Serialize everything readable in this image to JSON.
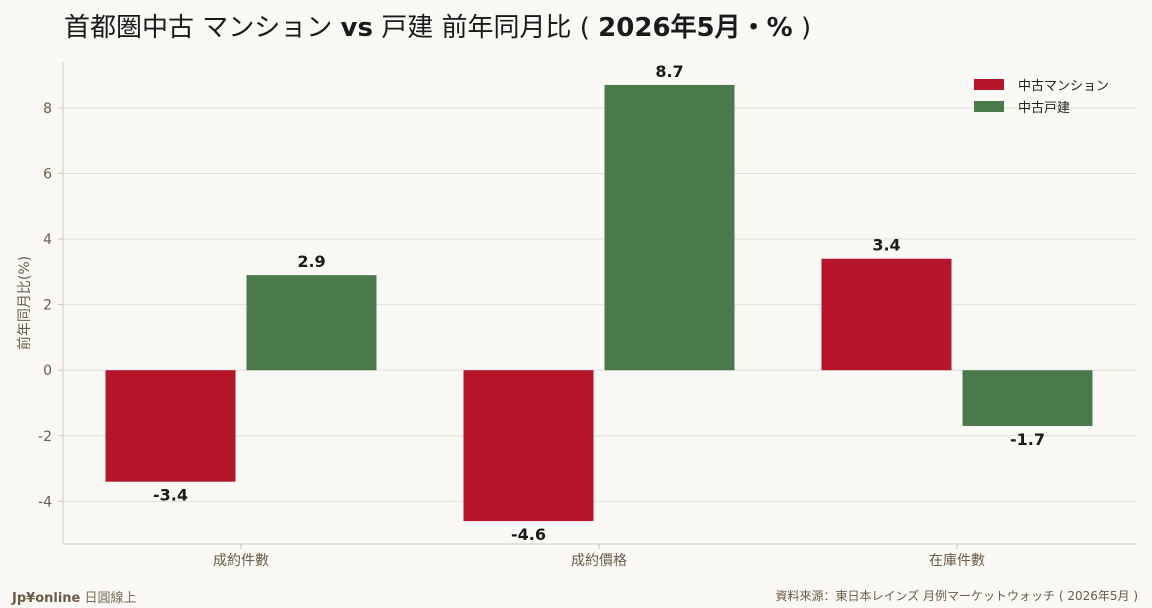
{
  "title": {
    "prefix": "首都圏中古 マンション ",
    "vs": "vs",
    "middle": " 戸建 前年同月比 ( ",
    "bold_suffix": "2026年5月・%",
    "close": " )"
  },
  "footer": {
    "brand": "Jp¥online",
    "brand_sub": " 日圓線上",
    "source": "資料來源：東日本レインズ 月例マーケットウォッチ ( 2026年5月 )"
  },
  "colors": {
    "mansion": "#b5152b",
    "house": "#4a7a4b",
    "grid": "#e2e0da",
    "axis_text": "#6b5b47",
    "background": "#faf9f5"
  },
  "chart_data": {
    "type": "bar",
    "categories": [
      "成約件數",
      "成約價格",
      "在庫件數"
    ],
    "series": [
      {
        "name": "中古マンション",
        "values": [
          -3.4,
          -4.6,
          3.4
        ]
      },
      {
        "name": "中古戸建",
        "values": [
          2.9,
          8.7,
          -1.7
        ]
      }
    ],
    "data_labels": [
      [
        "-3.4",
        "-4.6",
        "3.4"
      ],
      [
        "2.9",
        "8.7",
        "-1.7"
      ]
    ],
    "ylabel": "前年同月比(%)",
    "xlabel": "",
    "yticks": [
      -4,
      -2,
      0,
      2,
      4,
      6,
      8
    ],
    "ytick_labels": [
      "-4",
      "-2",
      "0",
      "2",
      "4",
      "6",
      "8"
    ],
    "ylim": [
      -5.3,
      9.4
    ],
    "grid": true,
    "legend_position": "top-right"
  }
}
